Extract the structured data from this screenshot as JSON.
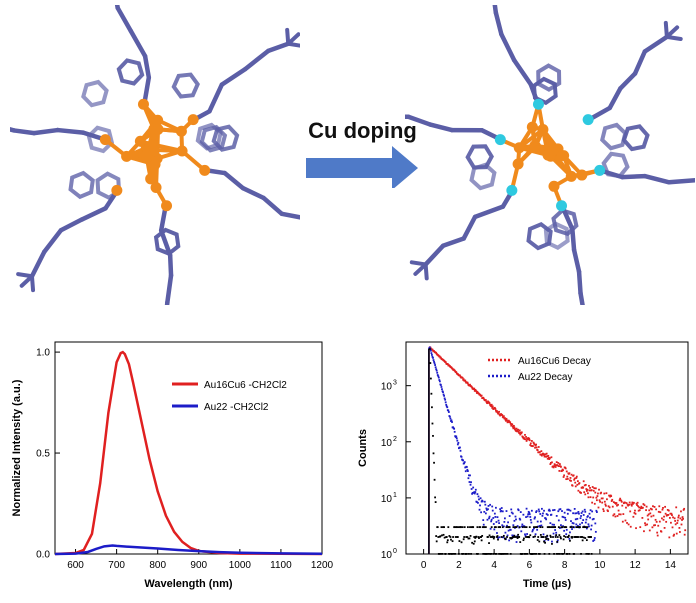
{
  "figure": {
    "arrow_label": "Cu doping",
    "structure_left": "Au22 cluster structure",
    "structure_right": "Au16Cu6 cluster structure"
  },
  "colors": {
    "ligand": "#5b5ea6",
    "gold_atom": "#f08a1c",
    "copper_atom": "#2ec9e0",
    "arrow": "#4f7ac8",
    "series_red": "#e02020",
    "series_blue": "#1c1cc8",
    "series_black": "#000000"
  },
  "chart_data": [
    {
      "type": "line",
      "xlabel": "Wavelength (nm)",
      "ylabel": "Normalized Intensity (a.u.)",
      "xlim": [
        550,
        1200
      ],
      "ylim": [
        0,
        1.05
      ],
      "xticks": [
        600,
        700,
        800,
        900,
        1000,
        1100,
        1200
      ],
      "yticks": [
        0.0,
        0.5,
        1.0
      ],
      "xtick_labels": [
        "600",
        "700",
        "800",
        "900",
        "1000",
        "1100",
        "1200"
      ],
      "ytick_labels": [
        "0.0",
        "0.5",
        "1.0"
      ],
      "legend": "top-right",
      "series": [
        {
          "name": "Au16Cu6 -CH2Cl2",
          "color": "#e02020",
          "x": [
            550,
            600,
            620,
            640,
            660,
            680,
            700,
            710,
            715,
            720,
            730,
            740,
            760,
            780,
            800,
            820,
            840,
            860,
            880,
            900,
            950,
            1000,
            1100,
            1200
          ],
          "y": [
            0,
            0.005,
            0.02,
            0.1,
            0.35,
            0.7,
            0.95,
            0.995,
            1.0,
            0.99,
            0.94,
            0.85,
            0.66,
            0.47,
            0.31,
            0.19,
            0.11,
            0.06,
            0.03,
            0.015,
            0.005,
            0.002,
            0.001,
            0
          ]
        },
        {
          "name": "Au22 -CH2Cl2",
          "color": "#1c1cc8",
          "x": [
            550,
            600,
            630,
            650,
            670,
            690,
            700,
            720,
            760,
            800,
            850,
            900,
            950,
            1000,
            1100,
            1200
          ],
          "y": [
            0,
            0.002,
            0.01,
            0.025,
            0.038,
            0.042,
            0.04,
            0.037,
            0.032,
            0.027,
            0.02,
            0.014,
            0.009,
            0.006,
            0.003,
            0.001
          ]
        }
      ]
    },
    {
      "type": "scatter",
      "xlabel": "Time (µs)",
      "ylabel": "Counts",
      "xlim": [
        -1,
        15
      ],
      "ylim": [
        1,
        6000
      ],
      "yscale": "log",
      "xticks": [
        0,
        2,
        4,
        6,
        8,
        10,
        12,
        14
      ],
      "xtick_labels": [
        "0",
        "2",
        "4",
        "6",
        "8",
        "10",
        "12",
        "14"
      ],
      "yticks": [
        1,
        10,
        100,
        1000
      ],
      "ytick_labels": [
        "10",
        "10",
        "10",
        "10"
      ],
      "ytick_exponents": [
        "0",
        "1",
        "2",
        "3"
      ],
      "legend": "top-right",
      "series": [
        {
          "name": "Au16Cu6 Decay",
          "color": "#e02020",
          "peak_time": 0.3,
          "peak_counts": 4800,
          "decay_lifetime_us": 1.45,
          "background": 4,
          "end_time": 14.8
        },
        {
          "name": "Au22 Decay",
          "color": "#1c1cc8",
          "peak_time": 0.3,
          "peak_counts": 4800,
          "decay_lifetime_us": 0.4,
          "background": 4,
          "end_time": 9.8
        },
        {
          "name": "",
          "color": "#000000",
          "peak_time": 0.3,
          "peak_counts": 4500,
          "decay_lifetime_us": 0.05,
          "background": 1,
          "end_time": 9.5
        }
      ]
    }
  ]
}
